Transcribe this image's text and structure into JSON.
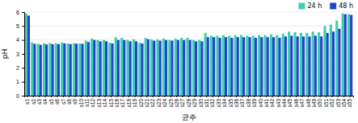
{
  "chart_data": {
    "type": "bar",
    "xlabel": "균주",
    "ylabel": "pH",
    "categories": [
      "s1",
      "s2",
      "s3",
      "s4",
      "s5",
      "s6",
      "s7",
      "s8",
      "s9",
      "s10",
      "s11",
      "s12",
      "s13",
      "s14",
      "s15",
      "s16",
      "s17",
      "s18",
      "s19",
      "s20",
      "s21",
      "s22",
      "s23",
      "s24",
      "s25",
      "s26",
      "s27",
      "s28",
      "s29",
      "s30",
      "s31",
      "s32",
      "s33",
      "s34",
      "s35",
      "s36",
      "s37",
      "s38",
      "s39",
      "s40",
      "s41",
      "s42",
      "s43",
      "s44",
      "s45",
      "s46",
      "s47",
      "s48",
      "s49",
      "s50",
      "s51",
      "s52",
      "s53",
      "s54",
      "s55"
    ],
    "series": [
      {
        "name": "24 h",
        "color": "#3ecfb2",
        "values": [
          5.9,
          3.82,
          3.72,
          3.75,
          3.78,
          3.76,
          3.82,
          3.75,
          3.77,
          3.75,
          3.95,
          4.1,
          4.0,
          4.0,
          3.8,
          4.2,
          4.15,
          4.0,
          4.05,
          3.8,
          4.15,
          4.05,
          4.05,
          4.1,
          4.0,
          4.1,
          4.15,
          4.15,
          4.0,
          4.0,
          4.5,
          4.3,
          4.3,
          4.35,
          4.3,
          4.35,
          4.35,
          4.3,
          4.3,
          4.35,
          4.35,
          4.4,
          4.35,
          4.45,
          4.6,
          4.55,
          4.5,
          4.5,
          4.6,
          4.55,
          5.0,
          5.1,
          5.4,
          5.9,
          5.85
        ]
      },
      {
        "name": "48 h",
        "color": "#2244cc",
        "values": [
          5.75,
          3.72,
          3.65,
          3.68,
          3.7,
          3.7,
          3.75,
          3.7,
          3.73,
          3.72,
          3.85,
          4.0,
          3.9,
          3.9,
          3.75,
          4.0,
          4.0,
          3.9,
          3.9,
          3.75,
          4.05,
          3.95,
          3.95,
          4.0,
          3.95,
          4.0,
          4.0,
          4.0,
          3.9,
          3.9,
          4.2,
          4.2,
          4.15,
          4.2,
          4.15,
          4.2,
          4.2,
          4.2,
          4.15,
          4.2,
          4.2,
          4.2,
          4.15,
          4.25,
          4.3,
          4.25,
          4.25,
          4.25,
          4.3,
          4.25,
          4.5,
          4.6,
          4.8,
          5.85,
          5.8
        ]
      }
    ],
    "ylim": [
      0,
      6
    ],
    "yticks": [
      0,
      1,
      2,
      3,
      4,
      5,
      6
    ],
    "grid": true,
    "legend": "top-right"
  }
}
